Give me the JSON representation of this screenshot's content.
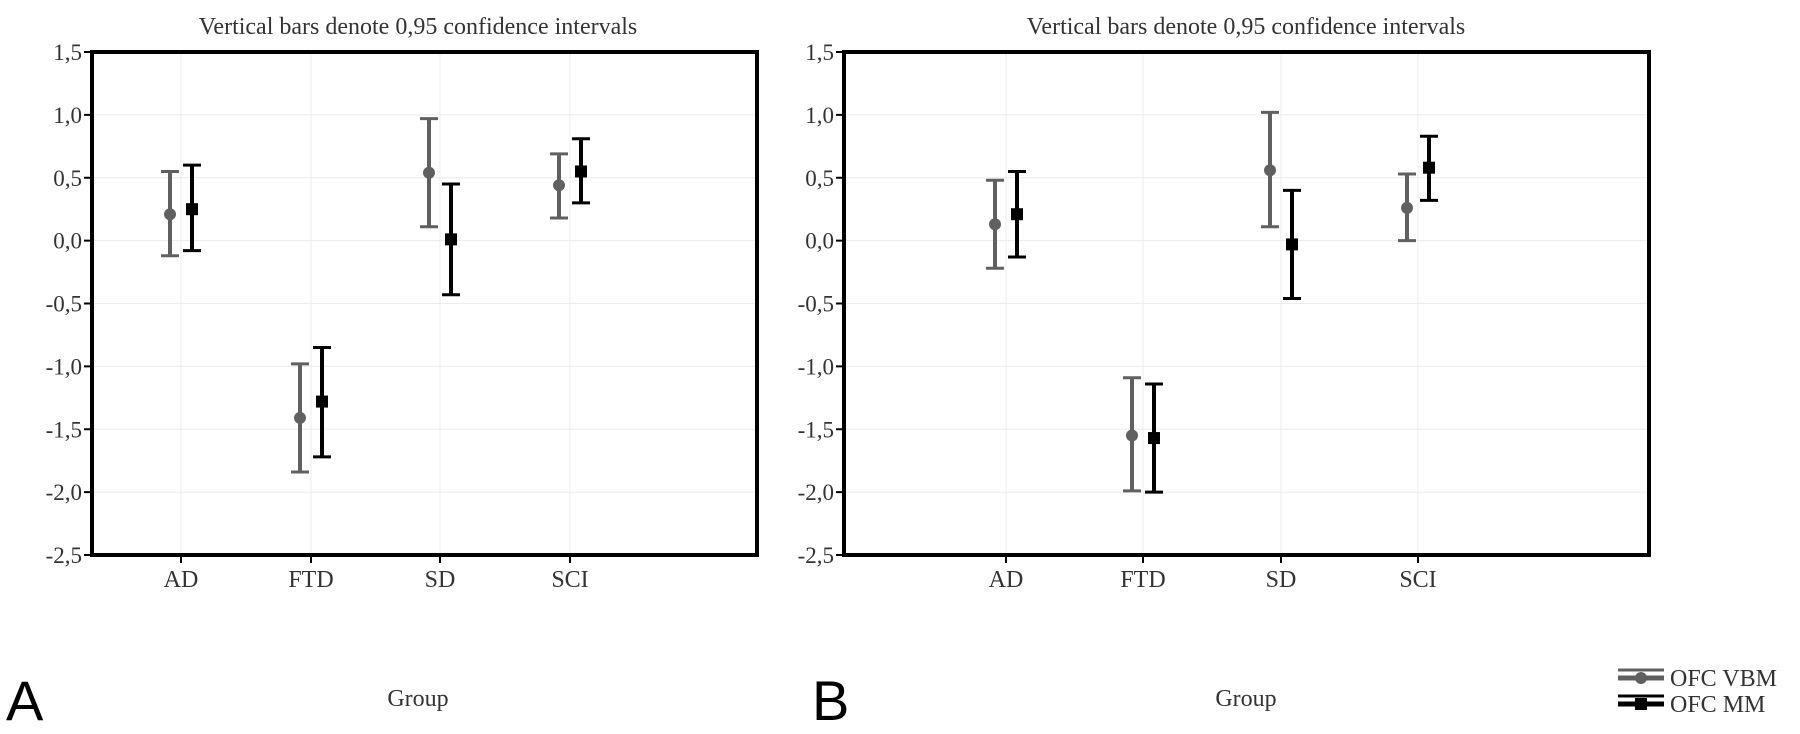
{
  "figure": {
    "panels": [
      {
        "letter": "A"
      },
      {
        "letter": "B"
      }
    ],
    "legend": {
      "items": [
        {
          "label": "OFC VBM",
          "color": "#606060",
          "marker": "circle"
        },
        {
          "label": "OFC MM",
          "color": "#000000",
          "marker": "square"
        }
      ]
    }
  },
  "chart_data": [
    {
      "type": "scatter",
      "title": "Vertical bars denote 0,95 confidence intervals",
      "xlabel": "Group",
      "ylabel": "",
      "categories": [
        "AD",
        "FTD",
        "SD",
        "SCI"
      ],
      "ylim": [
        -2.5,
        1.5
      ],
      "yticks": [
        "1,5",
        "1,0",
        "0,5",
        "0,0",
        "-0,5",
        "-1,0",
        "-1,5",
        "-2,0",
        "-2,5"
      ],
      "grid": true,
      "series": [
        {
          "name": "OFC VBM",
          "color": "#606060",
          "marker": "circle",
          "values": [
            0.21,
            -1.41,
            0.54,
            0.44
          ],
          "lower": [
            -0.12,
            -1.84,
            0.11,
            0.18
          ],
          "upper": [
            0.55,
            -0.98,
            0.97,
            0.69
          ]
        },
        {
          "name": "OFC MM",
          "color": "#000000",
          "marker": "square",
          "values": [
            0.25,
            -1.28,
            0.01,
            0.55
          ],
          "lower": [
            -0.08,
            -1.72,
            -0.43,
            0.3
          ],
          "upper": [
            0.6,
            -0.85,
            0.45,
            0.81
          ]
        }
      ]
    },
    {
      "type": "scatter",
      "title": "Vertical bars denote 0,95 confidence intervals",
      "xlabel": "Group",
      "ylabel": "",
      "categories": [
        "AD",
        "FTD",
        "SD",
        "SCI"
      ],
      "ylim": [
        -2.5,
        1.5
      ],
      "yticks": [
        "1,5",
        "1,0",
        "0,5",
        "0,0",
        "-0,5",
        "-1,0",
        "-1,5",
        "-2,0",
        "-2,5"
      ],
      "grid": true,
      "series": [
        {
          "name": "OFC VBM",
          "color": "#606060",
          "marker": "circle",
          "values": [
            0.13,
            -1.55,
            0.56,
            0.26
          ],
          "lower": [
            -0.22,
            -1.99,
            0.11,
            0.0
          ],
          "upper": [
            0.48,
            -1.09,
            1.02,
            0.53
          ]
        },
        {
          "name": "OFC MM",
          "color": "#000000",
          "marker": "square",
          "values": [
            0.21,
            -1.57,
            -0.03,
            0.58
          ],
          "lower": [
            -0.13,
            -2.0,
            -0.46,
            0.32
          ],
          "upper": [
            0.55,
            -1.14,
            0.4,
            0.83
          ]
        }
      ]
    }
  ]
}
